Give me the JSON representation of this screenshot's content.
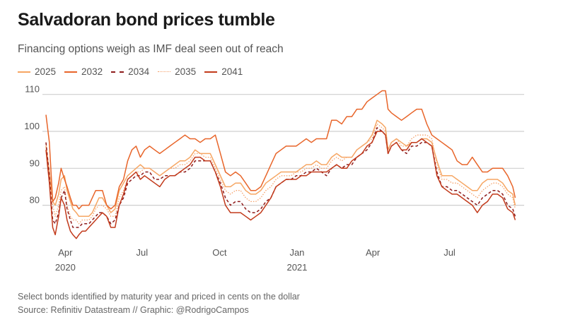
{
  "header": {
    "title": "Salvadoran bond prices tumble",
    "subtitle": "Financing options weigh as IMF deal seen out of reach"
  },
  "footer": {
    "note": "Select bonds identified by maturity year and priced in cents on the dollar",
    "source": "Source: Refinitiv Datastream // Graphic: @RodrigoCampos"
  },
  "chart_data": {
    "type": "line",
    "title": "Salvadoran bond prices tumble",
    "subtitle": "Financing options weigh as IMF deal seen out of reach",
    "xlabel": "",
    "ylabel": "",
    "ylim": [
      70,
      112
    ],
    "yticks": [
      80,
      90,
      100,
      110
    ],
    "grid": true,
    "legend_position": "top-left",
    "xlim": [
      "2020-03-09",
      "2021-09-20"
    ],
    "xticks": [
      {
        "date": "2020-04-01",
        "label": "Apr",
        "sublabel": "2020"
      },
      {
        "date": "2020-07-01",
        "label": "Jul",
        "sublabel": ""
      },
      {
        "date": "2020-10-01",
        "label": "Oct",
        "sublabel": ""
      },
      {
        "date": "2021-01-01",
        "label": "Jan",
        "sublabel": "2021"
      },
      {
        "date": "2021-04-01",
        "label": "Apr",
        "sublabel": ""
      },
      {
        "date": "2021-07-01",
        "label": "Jul",
        "sublabel": ""
      }
    ],
    "x": [
      "2020-03-09",
      "2020-03-13",
      "2020-03-17",
      "2020-03-20",
      "2020-03-24",
      "2020-03-27",
      "2020-03-31",
      "2020-04-03",
      "2020-04-07",
      "2020-04-10",
      "2020-04-14",
      "2020-04-17",
      "2020-04-21",
      "2020-04-25",
      "2020-04-29",
      "2020-05-03",
      "2020-05-07",
      "2020-05-11",
      "2020-05-15",
      "2020-05-20",
      "2020-05-25",
      "2020-05-30",
      "2020-06-04",
      "2020-06-09",
      "2020-06-14",
      "2020-06-19",
      "2020-06-24",
      "2020-06-29",
      "2020-07-04",
      "2020-07-10",
      "2020-07-16",
      "2020-07-22",
      "2020-07-28",
      "2020-08-03",
      "2020-08-09",
      "2020-08-15",
      "2020-08-21",
      "2020-08-27",
      "2020-09-02",
      "2020-09-08",
      "2020-09-14",
      "2020-09-20",
      "2020-09-26",
      "2020-10-02",
      "2020-10-08",
      "2020-10-14",
      "2020-10-20",
      "2020-10-26",
      "2020-11-01",
      "2020-11-07",
      "2020-11-13",
      "2020-11-19",
      "2020-11-25",
      "2020-12-01",
      "2020-12-07",
      "2020-12-13",
      "2020-12-19",
      "2020-12-25",
      "2020-12-31",
      "2021-01-06",
      "2021-01-12",
      "2021-01-18",
      "2021-01-24",
      "2021-01-30",
      "2021-02-05",
      "2021-02-11",
      "2021-02-17",
      "2021-02-23",
      "2021-03-01",
      "2021-03-07",
      "2021-03-13",
      "2021-03-19",
      "2021-03-25",
      "2021-03-31",
      "2021-04-06",
      "2021-04-12",
      "2021-04-16",
      "2021-04-19",
      "2021-04-23",
      "2021-04-29",
      "2021-05-05",
      "2021-05-11",
      "2021-05-17",
      "2021-05-23",
      "2021-05-29",
      "2021-06-04",
      "2021-06-10",
      "2021-06-16",
      "2021-06-22",
      "2021-06-28",
      "2021-07-04",
      "2021-07-10",
      "2021-07-16",
      "2021-07-22",
      "2021-07-28",
      "2021-08-03",
      "2021-08-09",
      "2021-08-15",
      "2021-08-21",
      "2021-08-27",
      "2021-09-02",
      "2021-09-08",
      "2021-09-14",
      "2021-09-17"
    ],
    "series": [
      {
        "name": "2025",
        "color": "#f6a663",
        "style": "solid",
        "values": [
          96,
          89,
          81,
          80,
          83,
          87,
          88,
          84,
          81,
          79,
          78,
          77,
          77,
          77,
          77,
          78,
          80,
          82,
          82,
          80,
          78,
          79,
          84,
          86,
          88,
          89,
          90,
          91,
          90,
          90,
          89,
          88,
          89,
          90,
          91,
          92,
          92,
          93,
          95,
          94,
          94,
          94,
          91,
          88,
          85,
          85,
          86,
          86,
          84,
          83,
          83,
          84,
          86,
          87,
          88,
          89,
          89,
          89,
          89,
          90,
          91,
          91,
          92,
          91,
          91,
          93,
          94,
          93,
          93,
          93,
          95,
          96,
          97,
          99,
          103,
          102,
          101,
          95,
          97,
          98,
          97,
          96,
          97,
          97,
          98,
          98,
          97,
          92,
          88,
          88,
          88,
          87,
          86,
          85,
          84,
          84,
          86,
          87,
          87,
          87,
          86,
          84,
          83,
          80
        ]
      },
      {
        "name": "2032",
        "color": "#e8652a",
        "style": "solid",
        "values": [
          104.5,
          97,
          81,
          82,
          86,
          90,
          87,
          85,
          82,
          80,
          80,
          79,
          80,
          80,
          80,
          82,
          84,
          84,
          84,
          80,
          79,
          80,
          85,
          87,
          92,
          95,
          96,
          93,
          95,
          96,
          95,
          94,
          95,
          96,
          97,
          98,
          99,
          98,
          98,
          97,
          98,
          98,
          99,
          94,
          89,
          88,
          89,
          88,
          86,
          84,
          84,
          85,
          88,
          91,
          94,
          95,
          96,
          96,
          96,
          97,
          98,
          97,
          98,
          98,
          98,
          103,
          103,
          102,
          104,
          104,
          106,
          106,
          108,
          109,
          110,
          111,
          111,
          106,
          105,
          104,
          103,
          104,
          105,
          106,
          106,
          102,
          99,
          98,
          97,
          96,
          95,
          92,
          91,
          91,
          93,
          91,
          89,
          89,
          90,
          90,
          90,
          88,
          85,
          82
        ]
      },
      {
        "name": "2034",
        "color": "#8e1b1b",
        "style": "dashed",
        "values": [
          97,
          88,
          76,
          75,
          78,
          82,
          84,
          79,
          76,
          74,
          74,
          74,
          75,
          75,
          75,
          76,
          77,
          78,
          78,
          77,
          75,
          76,
          80,
          82,
          86,
          87,
          88,
          88,
          89,
          89,
          87,
          87,
          88,
          88,
          88,
          89,
          89,
          90,
          92,
          92,
          92,
          92,
          89,
          86,
          82,
          80,
          81,
          81,
          79,
          78,
          78,
          79,
          81,
          82,
          85,
          86,
          87,
          87,
          88,
          88,
          89,
          89,
          90,
          89,
          88,
          90,
          91,
          90,
          91,
          91,
          93,
          94,
          95,
          97,
          101,
          100,
          99,
          94,
          96,
          97,
          95,
          94,
          96,
          96,
          97,
          97,
          96,
          89,
          85,
          85,
          84,
          84,
          83,
          82,
          81,
          80,
          82,
          83,
          84,
          84,
          83,
          80,
          79,
          77
        ]
      },
      {
        "name": "2035",
        "color": "#f5a26c",
        "style": "dotted",
        "values": [
          97,
          88,
          80,
          77,
          80,
          84,
          85,
          80,
          77,
          76,
          76,
          75,
          76,
          76,
          76,
          77,
          79,
          80,
          80,
          79,
          77,
          77,
          82,
          84,
          87,
          88,
          89,
          89,
          90,
          90,
          89,
          88,
          89,
          90,
          90,
          91,
          91,
          92,
          94,
          94,
          93,
          93,
          90,
          87,
          84,
          83,
          84,
          84,
          82,
          81,
          81,
          82,
          84,
          85,
          87,
          88,
          88,
          88,
          89,
          89,
          90,
          90,
          91,
          90,
          90,
          92,
          93,
          92,
          93,
          93,
          95,
          96,
          97,
          98,
          102,
          101,
          100,
          95,
          97,
          98,
          96,
          96,
          98,
          99,
          99,
          99,
          98,
          91,
          87,
          87,
          86,
          86,
          85,
          84,
          83,
          82,
          84,
          85,
          86,
          86,
          85,
          83,
          82,
          79
        ]
      },
      {
        "name": "2041",
        "color": "#c23a1b",
        "style": "solid",
        "values": [
          95,
          86,
          74,
          72,
          77,
          82,
          80,
          76,
          73,
          72,
          71,
          72,
          73,
          73,
          74,
          75,
          76,
          77,
          78,
          77,
          74,
          74,
          80,
          83,
          87,
          88,
          89,
          87,
          88,
          87,
          86,
          85,
          87,
          88,
          88,
          89,
          90,
          91,
          93,
          93,
          92,
          92,
          89,
          85,
          80,
          78,
          78,
          78,
          77,
          76,
          77,
          78,
          80,
          82,
          85,
          86,
          87,
          87,
          87,
          88,
          88,
          89,
          89,
          89,
          89,
          90,
          91,
          90,
          90,
          92,
          93,
          94,
          96,
          97,
          100,
          100,
          99,
          94,
          96,
          97,
          95,
          95,
          97,
          97,
          98,
          97,
          96,
          88,
          85,
          84,
          83,
          83,
          82,
          81,
          80,
          78,
          80,
          81,
          83,
          83,
          82,
          79,
          78,
          76
        ]
      }
    ]
  }
}
